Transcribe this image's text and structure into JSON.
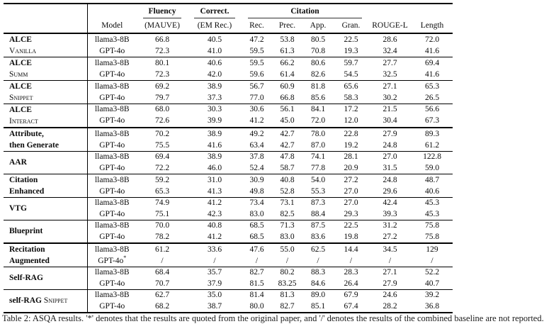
{
  "table": {
    "header": {
      "model": "Model",
      "fluency": "Fluency",
      "fluency_sub": "(MAUVE)",
      "correct": "Correct.",
      "correct_sub": "(EM Rec.)",
      "citation": "Citation",
      "citation_subs": [
        "Rec.",
        "Prec.",
        "App.",
        "Gran."
      ],
      "rouge": "ROUGE-L",
      "length": "Length"
    },
    "groups": [
      {
        "rule": "thin",
        "valign": "top",
        "name_lines": [
          [
            {
              "t": "ALCE",
              "b": true,
              "sc": false
            }
          ],
          [
            {
              "t": "Vanilla",
              "b": false,
              "sc": true
            }
          ]
        ],
        "rows": [
          {
            "model": "llama3-8B",
            "values": [
              "66.8",
              "40.5",
              "47.2",
              "53.8",
              "80.5",
              "22.5",
              "28.6",
              "72.0"
            ]
          },
          {
            "model": "GPT-4o",
            "values": [
              "72.3",
              "41.0",
              "59.5",
              "61.3",
              "70.8",
              "19.3",
              "32.4",
              "41.6"
            ]
          }
        ]
      },
      {
        "rule": "thin",
        "valign": "top",
        "name_lines": [
          [
            {
              "t": "ALCE",
              "b": true,
              "sc": false
            }
          ],
          [
            {
              "t": "Summ",
              "b": false,
              "sc": true
            }
          ]
        ],
        "rows": [
          {
            "model": "llama3-8B",
            "values": [
              "80.1",
              "40.6",
              "59.5",
              "66.2",
              "80.6",
              "59.7",
              "27.7",
              "69.4"
            ]
          },
          {
            "model": "GPT-4o",
            "values": [
              "72.3",
              "42.0",
              "59.6",
              "61.4",
              "82.6",
              "54.5",
              "32.5",
              "41.6"
            ]
          }
        ]
      },
      {
        "rule": "thin",
        "valign": "top",
        "name_lines": [
          [
            {
              "t": "ALCE",
              "b": true,
              "sc": false
            }
          ],
          [
            {
              "t": "Snippet",
              "b": false,
              "sc": true
            }
          ]
        ],
        "rows": [
          {
            "model": "llama3-8B",
            "values": [
              "69.2",
              "38.9",
              "56.7",
              "60.9",
              "81.8",
              "65.6",
              "27.1",
              "65.3"
            ]
          },
          {
            "model": "GPT-4o",
            "values": [
              "79.7",
              "37.3",
              "77.0",
              "66.8",
              "85.6",
              "58.3",
              "30.2",
              "26.5"
            ]
          }
        ]
      },
      {
        "rule": "thin",
        "valign": "top",
        "name_lines": [
          [
            {
              "t": "ALCE",
              "b": true,
              "sc": false
            }
          ],
          [
            {
              "t": "Interact",
              "b": false,
              "sc": true
            }
          ]
        ],
        "rows": [
          {
            "model": "llama3-8B",
            "values": [
              "68.0",
              "30.3",
              "30.6",
              "56.1",
              "84.1",
              "17.2",
              "21.5",
              "56.6"
            ]
          },
          {
            "model": "GPT-4o",
            "values": [
              "72.6",
              "39.9",
              "41.2",
              "45.0",
              "72.0",
              "12.0",
              "30.4",
              "67.3"
            ]
          }
        ]
      },
      {
        "rule": "thick",
        "valign": "top",
        "name_lines": [
          [
            {
              "t": "Attribute,",
              "b": true,
              "sc": false
            }
          ],
          [
            {
              "t": "then Generate",
              "b": true,
              "sc": false
            }
          ]
        ],
        "rows": [
          {
            "model": "llama3-8B",
            "values": [
              "70.2",
              "38.9",
              "49.2",
              "42.7",
              "78.0",
              "22.8",
              "27.9",
              "89.3"
            ]
          },
          {
            "model": "GPT-4o",
            "values": [
              "75.5",
              "41.6",
              "63.4",
              "42.7",
              "87.0",
              "19.2",
              "24.8",
              "61.2"
            ]
          }
        ]
      },
      {
        "rule": "thin",
        "valign": "middle",
        "name_lines": [
          [
            {
              "t": "AAR",
              "b": true,
              "sc": false
            }
          ]
        ],
        "rows": [
          {
            "model": "llama3-8B",
            "values": [
              "69.4",
              "38.9",
              "37.8",
              "47.8",
              "74.1",
              "28.1",
              "27.0",
              "122.8"
            ]
          },
          {
            "model": "GPT-4o",
            "values": [
              "72.2",
              "46.0",
              "52.4",
              "58.7",
              "77.8",
              "20.9",
              "31.5",
              "59.0"
            ]
          }
        ]
      },
      {
        "rule": "thin",
        "valign": "top",
        "name_lines": [
          [
            {
              "t": "Citation",
              "b": true,
              "sc": false
            }
          ],
          [
            {
              "t": "Enhanced",
              "b": true,
              "sc": false
            }
          ]
        ],
        "rows": [
          {
            "model": "llama3-8B",
            "values": [
              "59.2",
              "31.0",
              "30.9",
              "40.8",
              "54.0",
              "27.2",
              "24.8",
              "48.7"
            ]
          },
          {
            "model": "GPT-4o",
            "values": [
              "65.3",
              "41.3",
              "49.8",
              "52.8",
              "55.3",
              "27.0",
              "29.6",
              "40.6"
            ]
          }
        ]
      },
      {
        "rule": "thin",
        "valign": "middle",
        "name_lines": [
          [
            {
              "t": "VTG",
              "b": true,
              "sc": false
            }
          ]
        ],
        "rows": [
          {
            "model": "llama3-8B",
            "values": [
              "74.9",
              "41.2",
              "73.4",
              "73.1",
              "87.3",
              "27.0",
              "42.4",
              "45.3"
            ]
          },
          {
            "model": "GPT-4o",
            "values": [
              "75.1",
              "42.3",
              "83.0",
              "82.5",
              "88.4",
              "29.3",
              "39.3",
              "45.3"
            ]
          }
        ]
      },
      {
        "rule": "thin",
        "valign": "middle",
        "name_lines": [
          [
            {
              "t": "Blueprint",
              "b": true,
              "sc": false
            }
          ]
        ],
        "rows": [
          {
            "model": "llama3-8B",
            "values": [
              "70.0",
              "40.8",
              "68.5",
              "71.3",
              "87.5",
              "22.5",
              "31.2",
              "75.8"
            ]
          },
          {
            "model": "GPT-4o",
            "values": [
              "78.2",
              "41.2",
              "68.5",
              "83.0",
              "83.6",
              "19.8",
              "27.2",
              "75.8"
            ]
          }
        ]
      },
      {
        "rule": "thick",
        "valign": "top",
        "name_lines": [
          [
            {
              "t": "Recitation",
              "b": true,
              "sc": false
            }
          ],
          [
            {
              "t": "Augmented",
              "b": true,
              "sc": false
            }
          ]
        ],
        "rows": [
          {
            "model": "llama3-8B",
            "values": [
              "61.2",
              "33.6",
              "47.6",
              "55.0",
              "62.5",
              "14.4",
              "34.5",
              "129"
            ]
          },
          {
            "model": "GPT-4o*",
            "values": [
              "/",
              "/",
              "/",
              "/",
              "/",
              "/",
              "/",
              "/"
            ]
          }
        ]
      },
      {
        "rule": "thin",
        "valign": "middle",
        "name_lines": [
          [
            {
              "t": "Self-RAG",
              "b": true,
              "sc": false
            }
          ]
        ],
        "rows": [
          {
            "model": "llama3-8B",
            "values": [
              "68.4",
              "35.7",
              "82.7",
              "80.2",
              "88.3",
              "28.3",
              "27.1",
              "52.2"
            ]
          },
          {
            "model": "GPT-4o",
            "values": [
              "70.7",
              "37.9",
              "81.5",
              "83.25",
              "84.6",
              "26.4",
              "27.9",
              "40.7"
            ]
          }
        ]
      },
      {
        "rule": "thin",
        "valign": "middle",
        "name_lines": [
          [
            {
              "t": "self-RAG",
              "b": true,
              "sc": false
            },
            {
              "t": "Snippet",
              "b": false,
              "sc": true
            }
          ]
        ],
        "rows": [
          {
            "model": "llama3-8B",
            "values": [
              "62.7",
              "35.0",
              "81.4",
              "81.3",
              "89.0",
              "67.9",
              "24.6",
              "39.2"
            ]
          },
          {
            "model": "GPT-4o",
            "values": [
              "68.2",
              "38.7",
              "80.0",
              "82.7",
              "85.1",
              "67.4",
              "28.2",
              "36.8"
            ]
          }
        ]
      }
    ]
  },
  "caption": "Table 2: ASQA results. '*' denotes that the results are quoted from the original paper, and '/' denotes the results of the combined baseline are not reported."
}
